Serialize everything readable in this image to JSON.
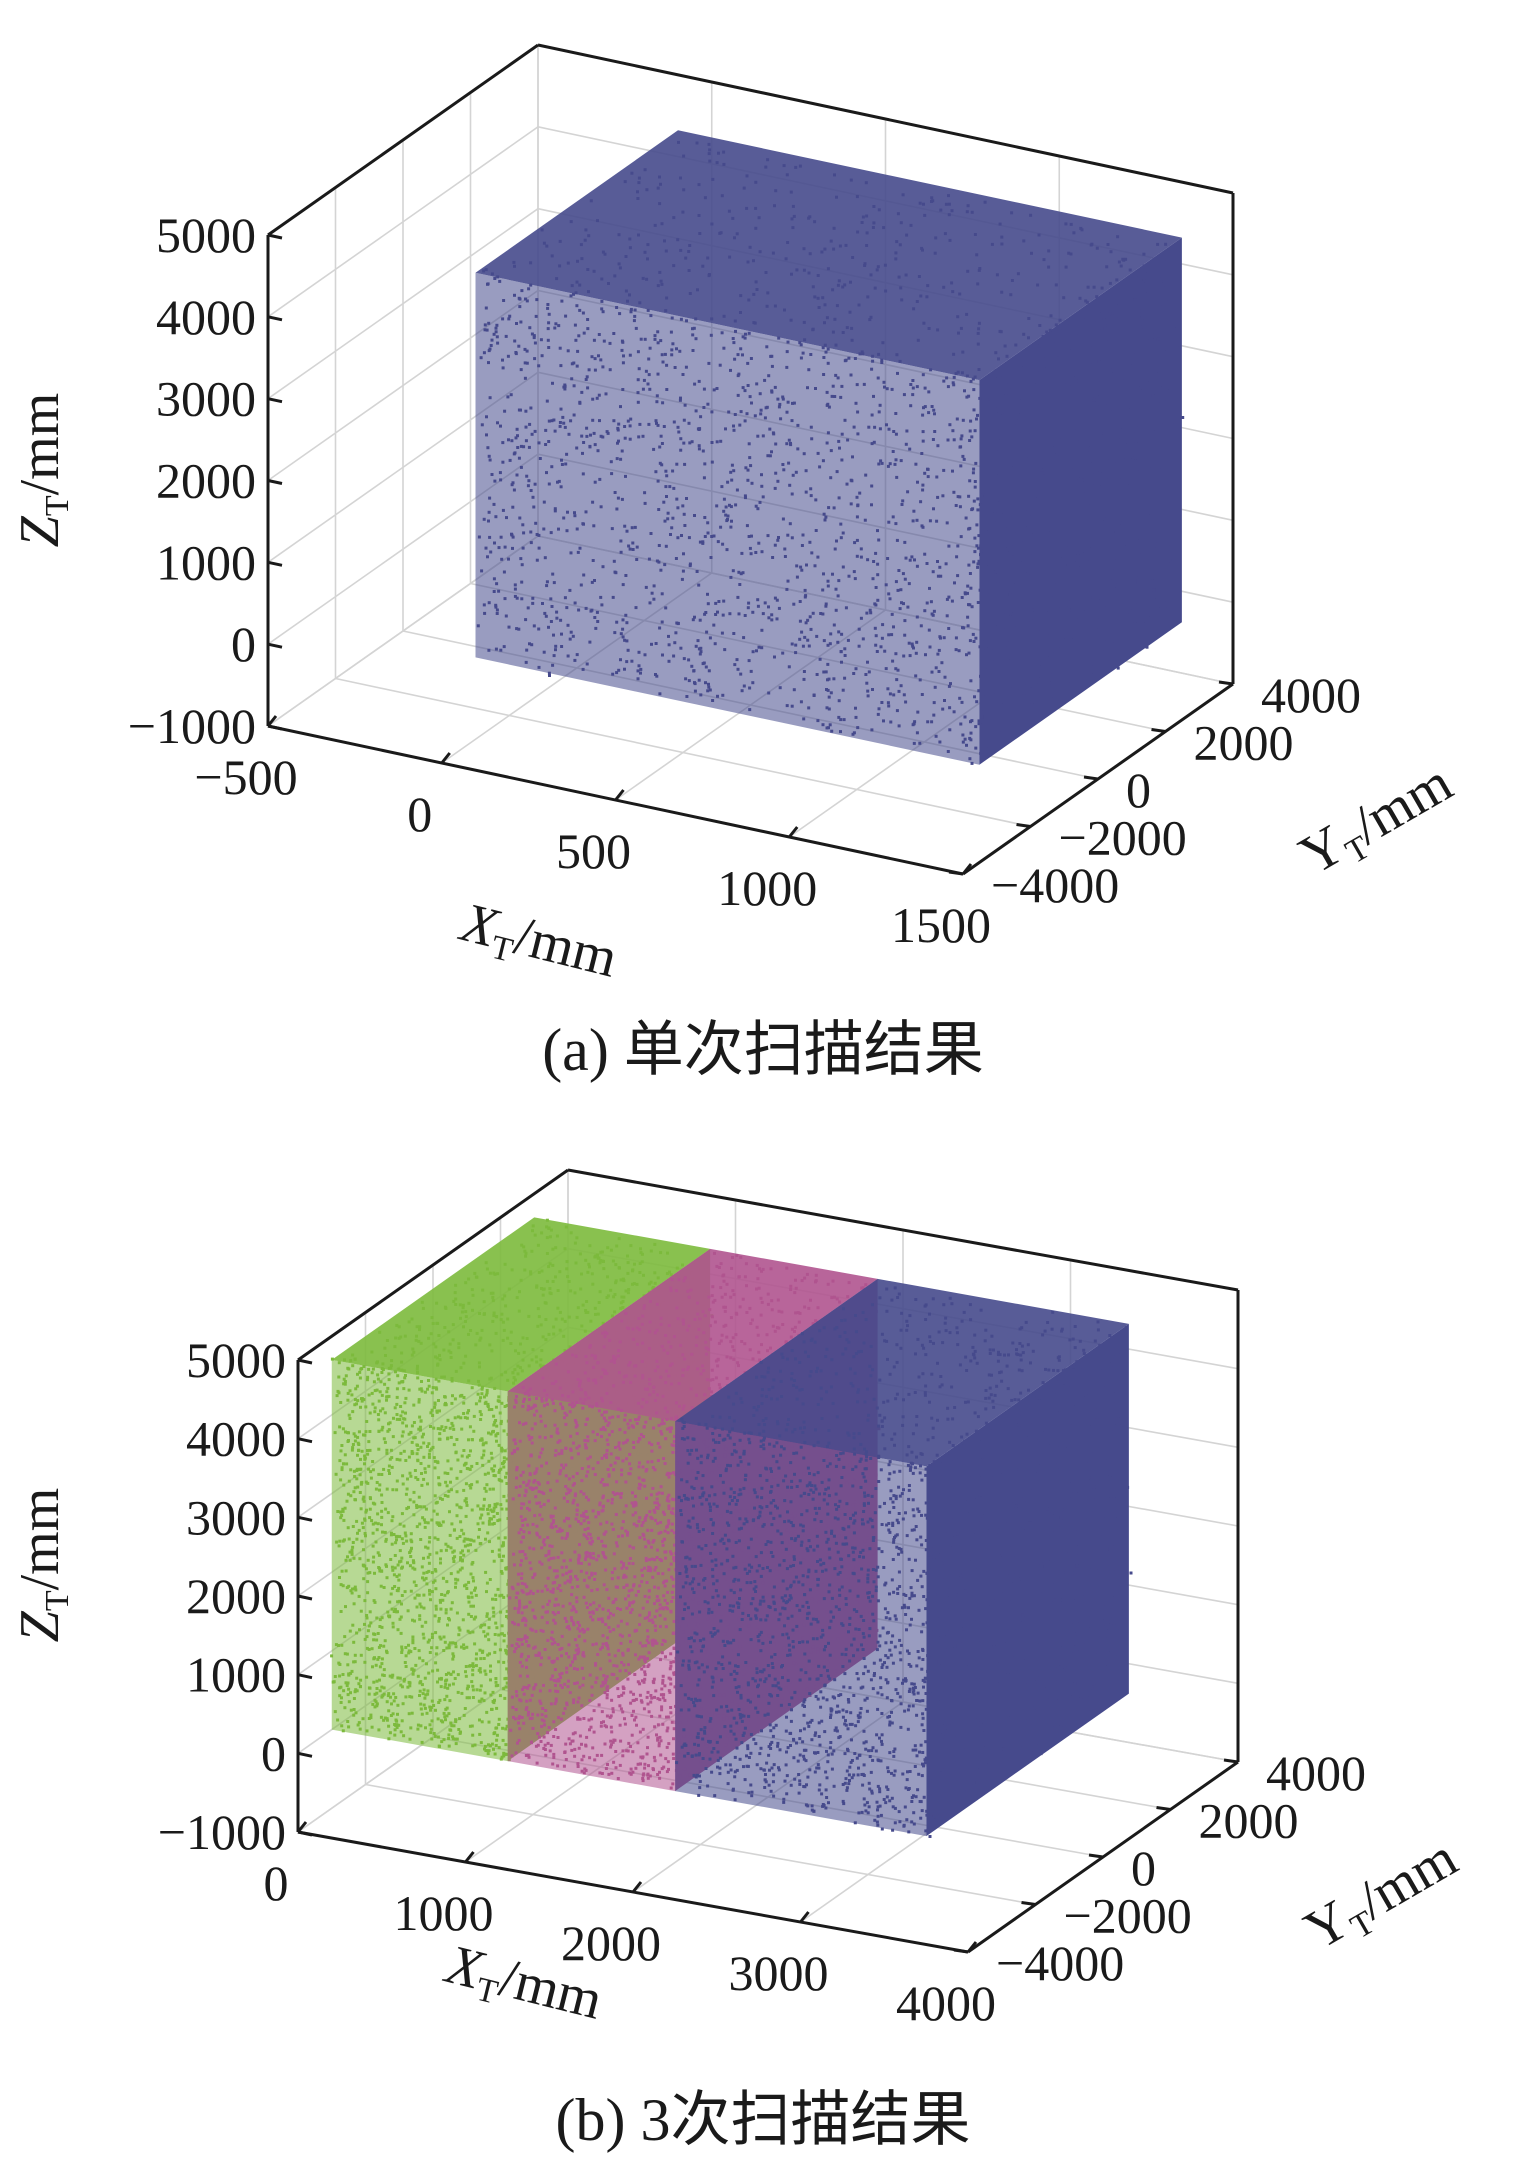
{
  "chart_data": [
    {
      "type": "scatter",
      "caption": "(a)  单次扫描结果",
      "xlabel": "X",
      "xlabel_sub": "T",
      "xlabel_unit": "/mm",
      "ylabel": "Y",
      "ylabel_sub": "T",
      "ylabel_unit": "/mm",
      "zlabel": "Z",
      "zlabel_sub": "T",
      "zlabel_unit": "/mm",
      "xlim": [
        -500,
        1500
      ],
      "ylim": [
        -4000,
        4000
      ],
      "zlim": [
        -1000,
        5000
      ],
      "x_ticks": [
        "−500",
        "0",
        "500",
        "1000",
        "1500"
      ],
      "y_ticks": [
        "−4000",
        "−2000",
        "0",
        "2000",
        "4000"
      ],
      "z_ticks": [
        "−1000",
        "0",
        "1000",
        "2000",
        "3000",
        "4000",
        "5000"
      ],
      "grid": true,
      "colors": [
        "#464a8c"
      ],
      "series": [
        {
          "x_range": [
            0,
            1450
          ],
          "y_range": [
            -3000,
            3000
          ],
          "z_range": [
            0,
            4700
          ],
          "color": "#464a8c"
        }
      ]
    },
    {
      "type": "scatter",
      "caption": "(b)  3次扫描结果",
      "xlabel": "X",
      "xlabel_sub": "T",
      "xlabel_unit": "/mm",
      "ylabel": "Y",
      "ylabel_sub": "T",
      "ylabel_unit": "/mm",
      "zlabel": "Z",
      "zlabel_sub": "T",
      "zlabel_unit": "/mm",
      "xlim": [
        0,
        4000
      ],
      "ylim": [
        -4000,
        4000
      ],
      "zlim": [
        -1000,
        5000
      ],
      "x_ticks": [
        "0",
        "1000",
        "2000",
        "3000",
        "4000"
      ],
      "y_ticks": [
        "−4000",
        "−2000",
        "0",
        "2000",
        "4000"
      ],
      "z_ticks": [
        "−1000",
        "0",
        "1000",
        "2000",
        "3000",
        "4000",
        "5000"
      ],
      "grid": true,
      "colors": [
        "#7cba3c",
        "#b0548f",
        "#464a8c"
      ],
      "series": [
        {
          "x_range": [
            0,
            1050
          ],
          "y_range": [
            -3000,
            3000
          ],
          "z_range": [
            0,
            4700
          ],
          "color": "#7cba3c"
        },
        {
          "x_range": [
            1050,
            2050
          ],
          "y_range": [
            -3000,
            3000
          ],
          "z_range": [
            0,
            4700
          ],
          "color": "#b0548f"
        },
        {
          "x_range": [
            2050,
            3550
          ],
          "y_range": [
            -3000,
            3000
          ],
          "z_range": [
            0,
            4700
          ],
          "color": "#464a8c"
        }
      ]
    }
  ]
}
